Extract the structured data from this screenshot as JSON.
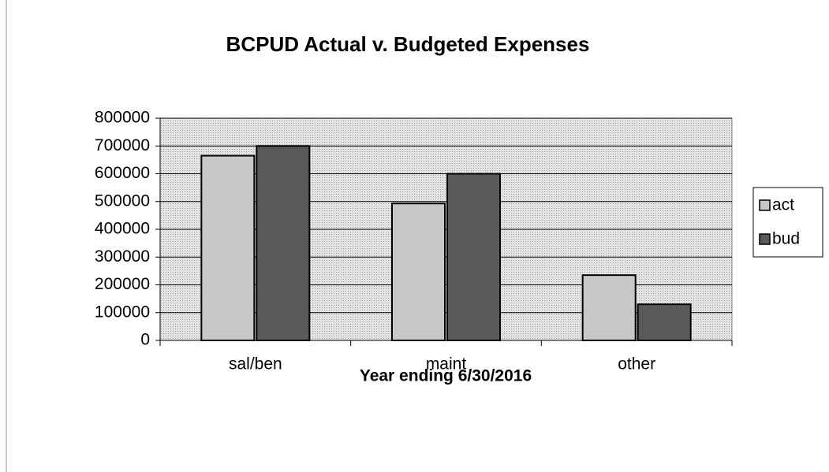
{
  "chart_data": {
    "type": "bar",
    "title": "BCPUD Actual v. Budgeted Expenses",
    "x_label": "Year ending 6/30/2016",
    "categories": [
      "sal/ben",
      "maint",
      "other"
    ],
    "series": [
      {
        "name": "act",
        "color": "#c8c8c8",
        "values": [
          665000,
          493000,
          235000
        ]
      },
      {
        "name": "bud",
        "color": "#5a5a5a",
        "values": [
          700000,
          600000,
          130000
        ]
      }
    ],
    "ylim": [
      0,
      800000
    ],
    "yticks": [
      0,
      100000,
      200000,
      300000,
      400000,
      500000,
      600000,
      700000,
      800000
    ],
    "grid": true,
    "legend": "right"
  }
}
